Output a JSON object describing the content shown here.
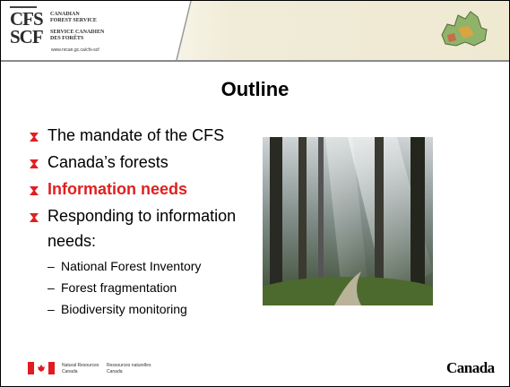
{
  "header": {
    "logo_en_abbr": "CFS",
    "logo_en_name": [
      "CANADIAN",
      "FOREST SERVICE"
    ],
    "logo_fr_abbr": "SCF",
    "logo_fr_name": [
      "SERVICE CANADIEN",
      "DES FORÊTS"
    ],
    "url": "www.nrcan.gc.ca/cfs-scf"
  },
  "title": "Outline",
  "bullets": [
    {
      "text": "The mandate of the CFS"
    },
    {
      "text": "Canada’s forests"
    },
    {
      "text": "Information needs",
      "highlighted": true
    },
    {
      "text": [
        "Responding to information",
        "needs:"
      ],
      "sub_items": [
        "National Forest Inventory",
        "Forest fragmentation",
        "Biodiversity monitoring"
      ]
    }
  ],
  "footer": {
    "dept_en": [
      "Natural Resources",
      "Canada"
    ],
    "dept_fr": [
      "Ressources naturelles",
      "Canada"
    ],
    "wordmark": "Canada"
  }
}
